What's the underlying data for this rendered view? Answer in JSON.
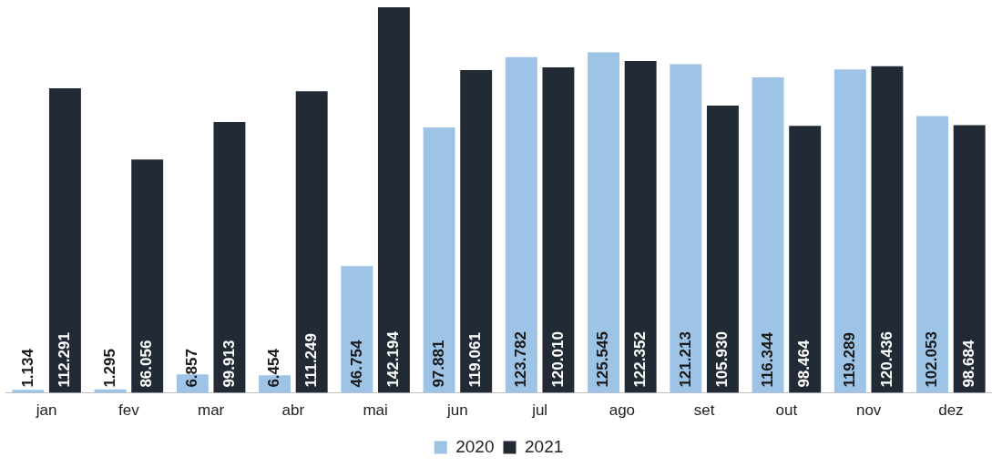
{
  "chart_data": {
    "type": "bar",
    "categories": [
      "jan",
      "fev",
      "mar",
      "abr",
      "mai",
      "jun",
      "jul",
      "ago",
      "set",
      "out",
      "nov",
      "dez"
    ],
    "series": [
      {
        "name": "2020",
        "color": "#9dc3e6",
        "values": [
          1134,
          1295,
          6857,
          6454,
          46754,
          97881,
          123782,
          125545,
          121213,
          116344,
          119289,
          102053
        ],
        "value_labels": [
          "1.134",
          "1.295",
          "6.857",
          "6.454",
          "46.754",
          "97.881",
          "123.782",
          "125.545",
          "121.213",
          "116.344",
          "119.289",
          "102.053"
        ]
      },
      {
        "name": "2021",
        "color": "#222a35",
        "values": [
          112291,
          86056,
          99913,
          111249,
          142194,
          119061,
          120010,
          122352,
          105930,
          98464,
          120436,
          98684
        ],
        "value_labels": [
          "112.291",
          "86.056",
          "99.913",
          "111.249",
          "142.194",
          "119.061",
          "120.010",
          "122.352",
          "105.930",
          "98.464",
          "120.436",
          "98.684"
        ]
      }
    ],
    "legend": "bottom",
    "grid": false
  }
}
